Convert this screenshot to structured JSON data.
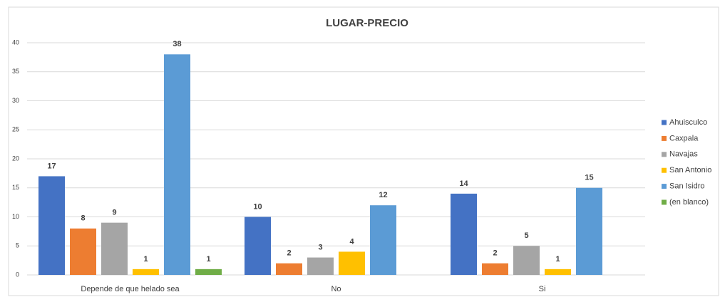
{
  "chart_data": {
    "type": "bar",
    "title": "LUGAR-PRECIO",
    "categories": [
      "Depende de que helado sea",
      "No",
      "Si"
    ],
    "series": [
      {
        "name": "Ahuisculco",
        "color": "#4472c4",
        "values": [
          17,
          10,
          14
        ]
      },
      {
        "name": "Caxpala",
        "color": "#ed7d31",
        "values": [
          8,
          2,
          2
        ]
      },
      {
        "name": "Navajas",
        "color": "#a5a5a5",
        "values": [
          9,
          3,
          5
        ]
      },
      {
        "name": "San Antonio",
        "color": "#ffc000",
        "values": [
          1,
          4,
          1
        ]
      },
      {
        "name": "San Isidro",
        "color": "#5b9bd5",
        "values": [
          38,
          12,
          15
        ]
      },
      {
        "name": "(en blanco)",
        "color": "#70ad47",
        "values": [
          1,
          null,
          null
        ]
      }
    ],
    "ylim": [
      0,
      40
    ],
    "yticks": [
      0,
      5,
      10,
      15,
      20,
      25,
      30,
      35,
      40
    ],
    "grid": true,
    "legend": "right"
  }
}
